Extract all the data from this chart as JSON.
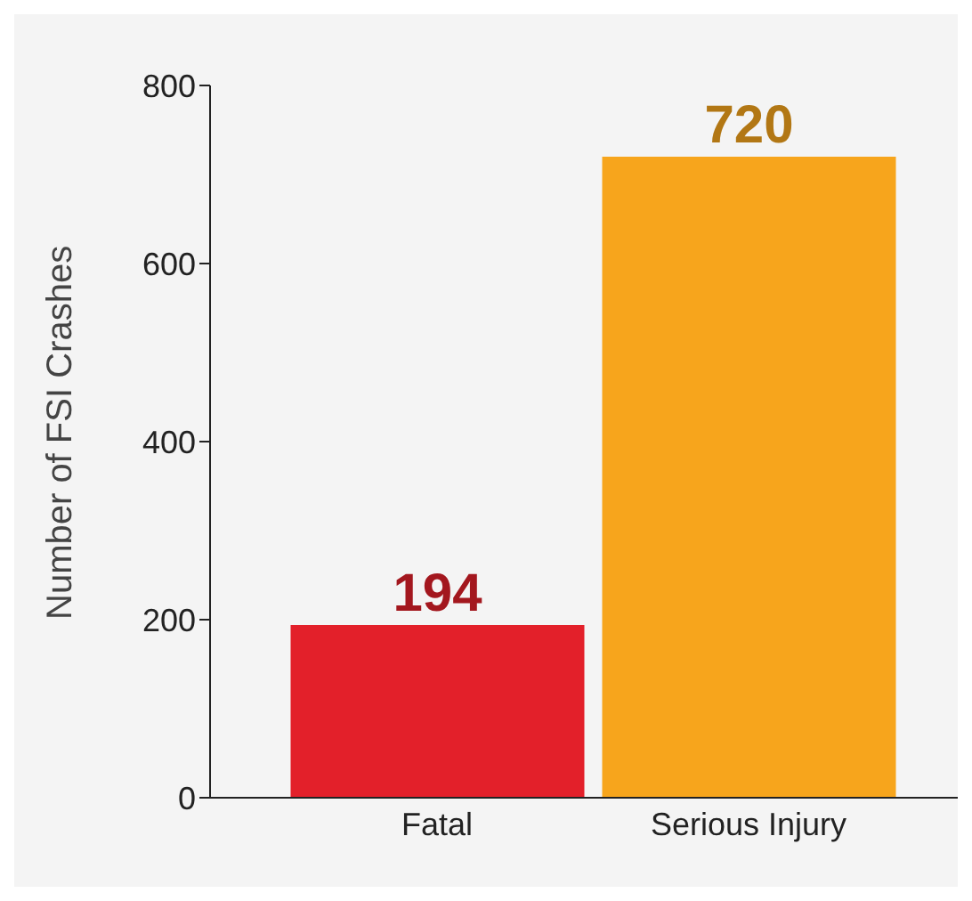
{
  "chart_data": {
    "type": "bar",
    "ylabel": "Number of FSI Crashes",
    "categories": [
      "Fatal",
      "Serious Injury"
    ],
    "values": [
      194,
      720
    ],
    "colors": [
      "#e3202a",
      "#f7a51c"
    ],
    "ylim": [
      0,
      800
    ],
    "yticks": [
      0,
      200,
      400,
      600,
      800
    ],
    "data_labels": true,
    "grid": false
  }
}
